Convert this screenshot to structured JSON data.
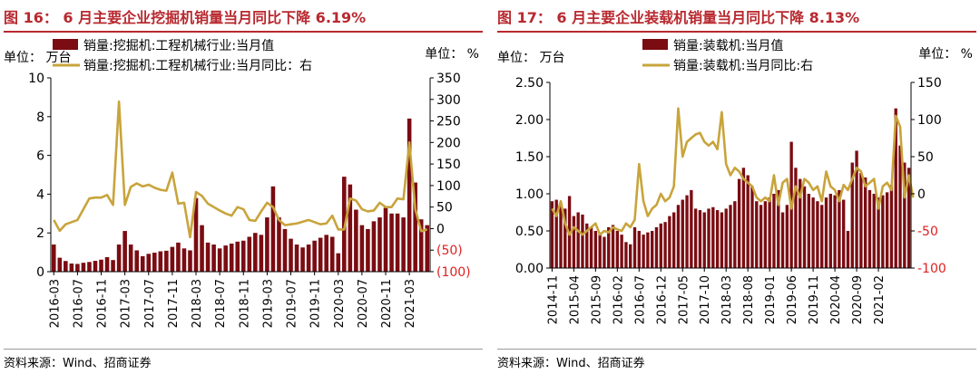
{
  "colors": {
    "bar": "#7a0c12",
    "line": "#c8a43c",
    "title": "#b8292f",
    "negative": "#e02020"
  },
  "chart_data": [
    {
      "type": "bar+line",
      "title": "图 16： 6 月主要企业挖掘机销量当月同比下降 6.19%",
      "left_unit": "单位：  万台",
      "right_unit": "单位：  %",
      "source": "资料来源：Wind、招商证券",
      "legend": [
        {
          "name": "销量:挖掘机:工程机械行业:当月值",
          "kind": "bar"
        },
        {
          "name": "销量:挖掘机:工程机械行业:当月同比：右",
          "kind": "line"
        }
      ],
      "y_left": {
        "min": 0,
        "max": 10,
        "ticks": [
          "0",
          "2",
          "4",
          "6",
          "8",
          "10"
        ]
      },
      "y_right": {
        "min": -100,
        "max": 350,
        "ticks": [
          "(100)",
          "(50)",
          "0",
          "50",
          "100",
          "150",
          "200",
          "250",
          "300",
          "350"
        ],
        "tick_values": [
          -100,
          -50,
          0,
          50,
          100,
          150,
          200,
          250,
          300,
          350
        ]
      },
      "x_tick_labels": [
        "2016-03",
        "2016-07",
        "2016-11",
        "2017-03",
        "2017-07",
        "2017-11",
        "2018-03",
        "2018-07",
        "2018-11",
        "2019-03",
        "2019-07",
        "2019-11",
        "2020-03",
        "2020-07",
        "2020-11",
        "2021-03"
      ],
      "x_tick_step": 4,
      "bar_values": [
        1.4,
        0.72,
        0.55,
        0.42,
        0.4,
        0.46,
        0.5,
        0.56,
        0.62,
        0.75,
        0.6,
        1.4,
        2.1,
        1.4,
        1.1,
        0.8,
        0.92,
        0.98,
        1.05,
        1.08,
        1.28,
        1.5,
        1.2,
        1.1,
        3.8,
        2.4,
        1.5,
        1.4,
        1.2,
        1.35,
        1.45,
        1.55,
        1.6,
        1.8,
        2.0,
        1.9,
        2.8,
        4.4,
        2.8,
        2.2,
        1.7,
        1.4,
        1.25,
        1.4,
        1.6,
        1.75,
        1.9,
        1.8,
        0.95,
        4.9,
        4.5,
        3.2,
        2.4,
        2.2,
        2.6,
        2.8,
        3.3,
        3.0,
        3.0,
        2.8,
        7.9,
        4.6,
        2.7,
        2.4
      ],
      "line_values": [
        20,
        -5,
        10,
        15,
        20,
        45,
        70,
        72,
        72,
        78,
        55,
        295,
        55,
        97,
        105,
        98,
        102,
        95,
        90,
        88,
        130,
        58,
        60,
        -20,
        85,
        76,
        58,
        50,
        42,
        35,
        30,
        50,
        45,
        20,
        18,
        40,
        60,
        50,
        20,
        8,
        10,
        12,
        16,
        20,
        15,
        10,
        12,
        30,
        -2,
        -2,
        70,
        65,
        45,
        40,
        42,
        60,
        50,
        50,
        70,
        68,
        200,
        45,
        -6,
        -2
      ]
    },
    {
      "type": "bar+line",
      "title": "图 17： 6 月主要企业装载机销量当月同比下降 8.13%",
      "left_unit": "单位：  万台",
      "right_unit": "单位：  %",
      "source": "资料来源：Wind、招商证券",
      "legend": [
        {
          "name": "销量:装载机:当月值",
          "kind": "bar"
        },
        {
          "name": "销量:装载机:当月同比:右",
          "kind": "line"
        }
      ],
      "y_left": {
        "min": 0,
        "max": 2.5,
        "ticks": [
          "0.00",
          "0.50",
          "1.00",
          "1.50",
          "2.00",
          "2.50"
        ]
      },
      "y_right": {
        "min": -100,
        "max": 150,
        "ticks": [
          "-100",
          "-50",
          "0",
          "50",
          "100",
          "150"
        ],
        "tick_values": [
          -100,
          -50,
          0,
          50,
          100,
          150
        ]
      },
      "x_tick_labels": [
        "2014-11",
        "2015-04",
        "2015-09",
        "2016-02",
        "2016-07",
        "2016-12",
        "2017-05",
        "2017-10",
        "2018-03",
        "2018-08",
        "2019-01",
        "2019-06",
        "2019-11",
        "2020-04",
        "2020-09",
        "2021-02"
      ],
      "x_tick_step": 5,
      "bar_values": [
        0.9,
        0.92,
        0.85,
        0.8,
        0.97,
        0.7,
        0.75,
        0.72,
        0.6,
        0.55,
        0.5,
        0.45,
        0.42,
        0.55,
        0.58,
        0.5,
        0.45,
        0.35,
        0.32,
        0.55,
        0.5,
        0.45,
        0.48,
        0.5,
        0.55,
        0.6,
        0.62,
        0.7,
        0.75,
        0.85,
        0.92,
        0.98,
        1.05,
        0.8,
        0.78,
        0.75,
        0.8,
        0.82,
        0.78,
        0.75,
        0.8,
        0.85,
        0.9,
        1.2,
        1.35,
        1.25,
        1.1,
        0.9,
        0.85,
        0.9,
        0.95,
        1.0,
        1.05,
        0.75,
        0.85,
        1.7,
        1.35,
        1.2,
        1.1,
        1.0,
        0.95,
        0.9,
        0.85,
        0.95,
        1.0,
        0.98,
        1.05,
        0.92,
        0.5,
        1.42,
        1.58,
        1.28,
        1.22,
        1.05,
        1.0,
        0.95,
        0.98,
        1.02,
        1.12,
        2.15,
        1.65,
        1.42,
        1.35
      ],
      "line_values": [
        -20,
        -30,
        -10,
        -40,
        -55,
        -45,
        -50,
        -55,
        -50,
        -45,
        -40,
        -55,
        -50,
        -52,
        -45,
        -48,
        -50,
        -40,
        -45,
        -35,
        40,
        -10,
        -30,
        -20,
        -15,
        0,
        -10,
        -5,
        10,
        115,
        50,
        70,
        75,
        80,
        82,
        70,
        65,
        70,
        60,
        110,
        40,
        25,
        35,
        30,
        20,
        15,
        10,
        -5,
        -10,
        -5,
        -10,
        25,
        -15,
        15,
        20,
        -20,
        10,
        -5,
        20,
        15,
        5,
        10,
        -10,
        30,
        10,
        5,
        -10,
        12,
        5,
        20,
        35,
        30,
        10,
        15,
        20,
        -20,
        10,
        15,
        5,
        105,
        90,
        -5,
        25,
        -5
      ]
    }
  ]
}
